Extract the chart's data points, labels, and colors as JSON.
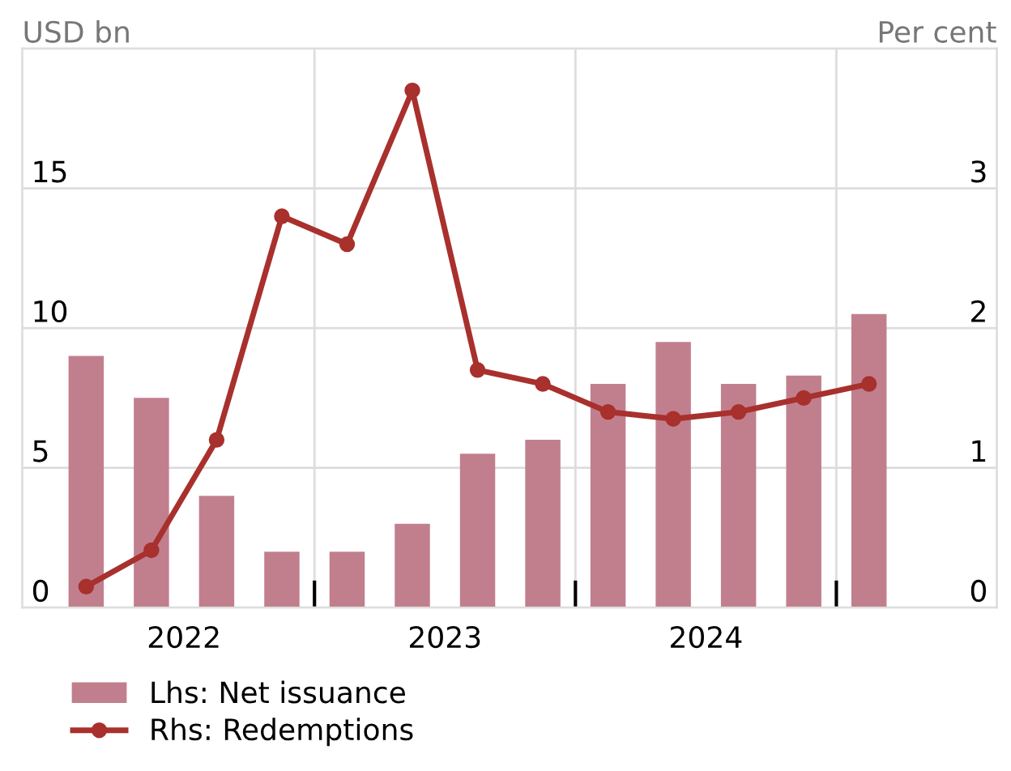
{
  "chart_data": {
    "type": "bar",
    "ylabel": "USD bn",
    "y2label": "Per cent",
    "x": [
      2022.125,
      2022.375,
      2022.625,
      2022.875,
      2023.125,
      2023.375,
      2023.625,
      2023.875,
      2024.125,
      2024.375,
      2024.625,
      2024.875,
      2025.125
    ],
    "xlim": [
      2021.88,
      2025.615
    ],
    "xticks": [
      {
        "value": 2022.5,
        "label": "2022"
      },
      {
        "value": 2023,
        "label": null
      },
      {
        "value": 2023.5,
        "label": "2023"
      },
      {
        "value": 2024,
        "label": null
      },
      {
        "value": 2024.5,
        "label": "2024"
      },
      {
        "value": 2025,
        "label": null
      }
    ],
    "ylim": [
      0,
      20
    ],
    "yticks": [
      0,
      5,
      10,
      15,
      {
        "value": 20,
        "label": null
      }
    ],
    "y2lim": [
      0,
      4
    ],
    "y2ticks": [
      0,
      1,
      2,
      3,
      {
        "value": 4,
        "label": null
      }
    ],
    "grid": true,
    "legend": "bottom left",
    "marker": "circle",
    "line_style": "solid",
    "series": [
      {
        "name": "Lhs: Net issuance",
        "color": "#c17f8e",
        "values": [
          9.0,
          7.5,
          4.0,
          2.0,
          2.0,
          3.0,
          5.5,
          6.0,
          8.0,
          9.5,
          8.0,
          8.3,
          10.5
        ]
      },
      {
        "name": "Rhs: Redemptions",
        "type": "line",
        "axis": "y2",
        "color": "#a8302d",
        "values": [
          0.15,
          0.41,
          1.2,
          2.8,
          2.6,
          3.7,
          1.7,
          1.6,
          1.4,
          1.35,
          1.4,
          1.5,
          1.6
        ]
      }
    ]
  }
}
